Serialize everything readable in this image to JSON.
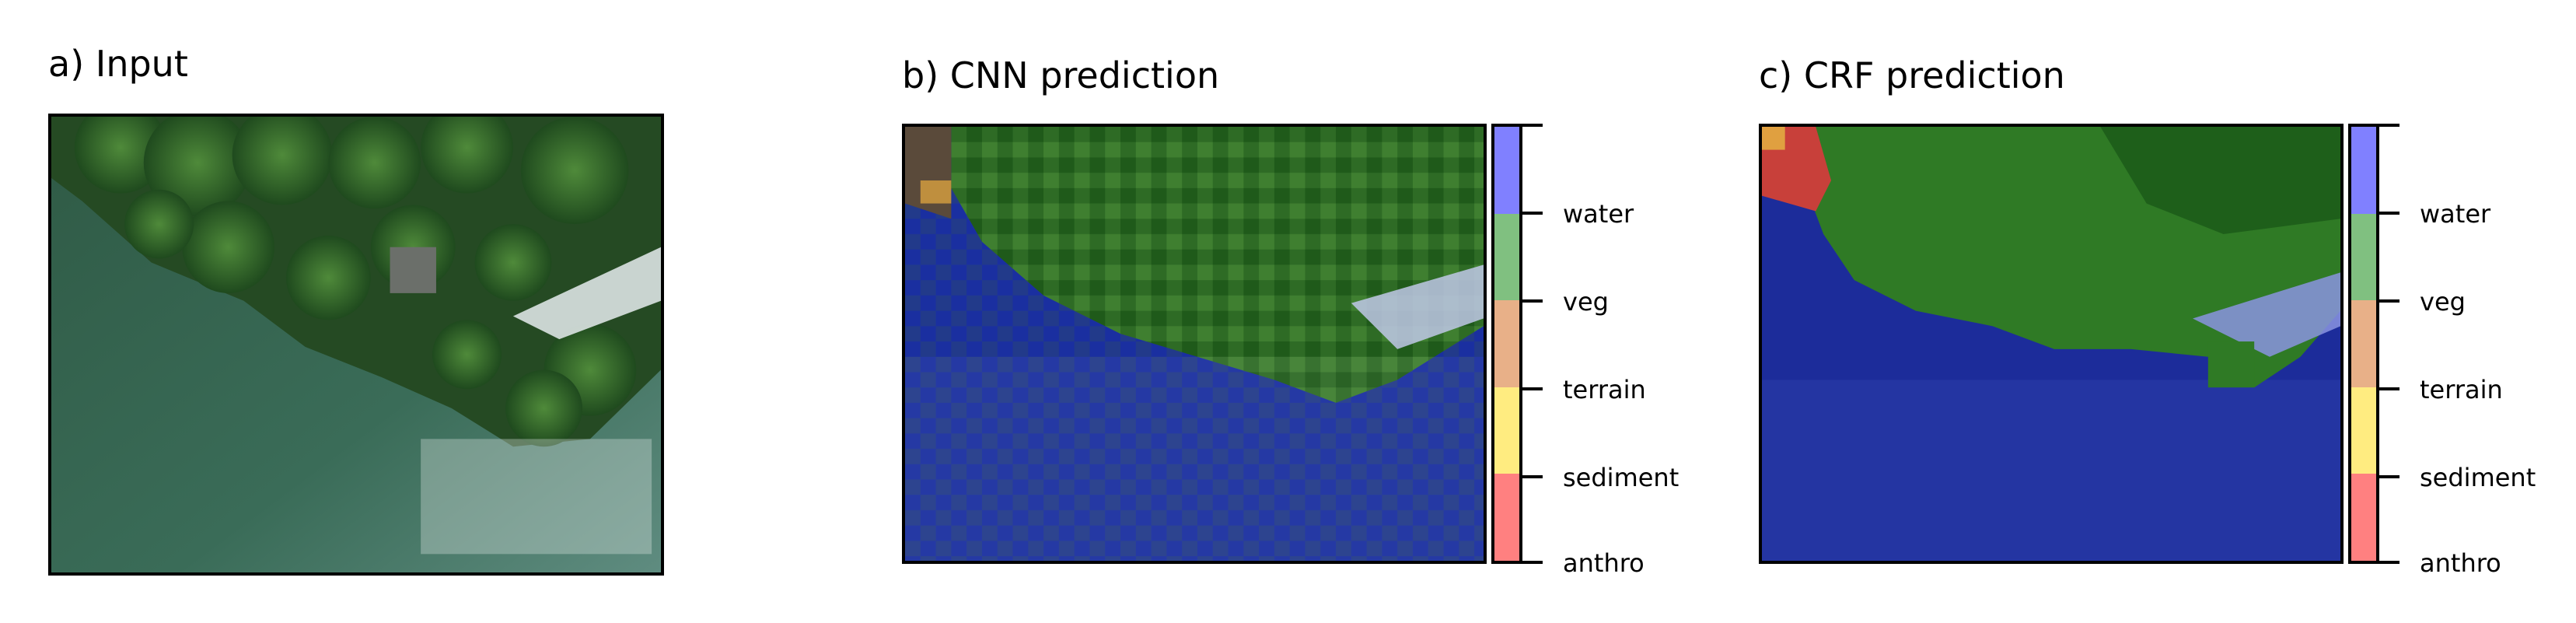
{
  "panels": {
    "a": {
      "title": "a) Input"
    },
    "b": {
      "title": "b) CNN prediction"
    },
    "c": {
      "title": "c) CRF prediction"
    }
  },
  "legend": {
    "classes": [
      {
        "label": "water",
        "color": "#8080ff"
      },
      {
        "label": "veg",
        "color": "#80c080"
      },
      {
        "label": "terrain",
        "color": "#e8b088"
      },
      {
        "label": "sediment",
        "color": "#ffec80"
      },
      {
        "label": "anthro",
        "color": "#ff8080"
      }
    ]
  }
}
